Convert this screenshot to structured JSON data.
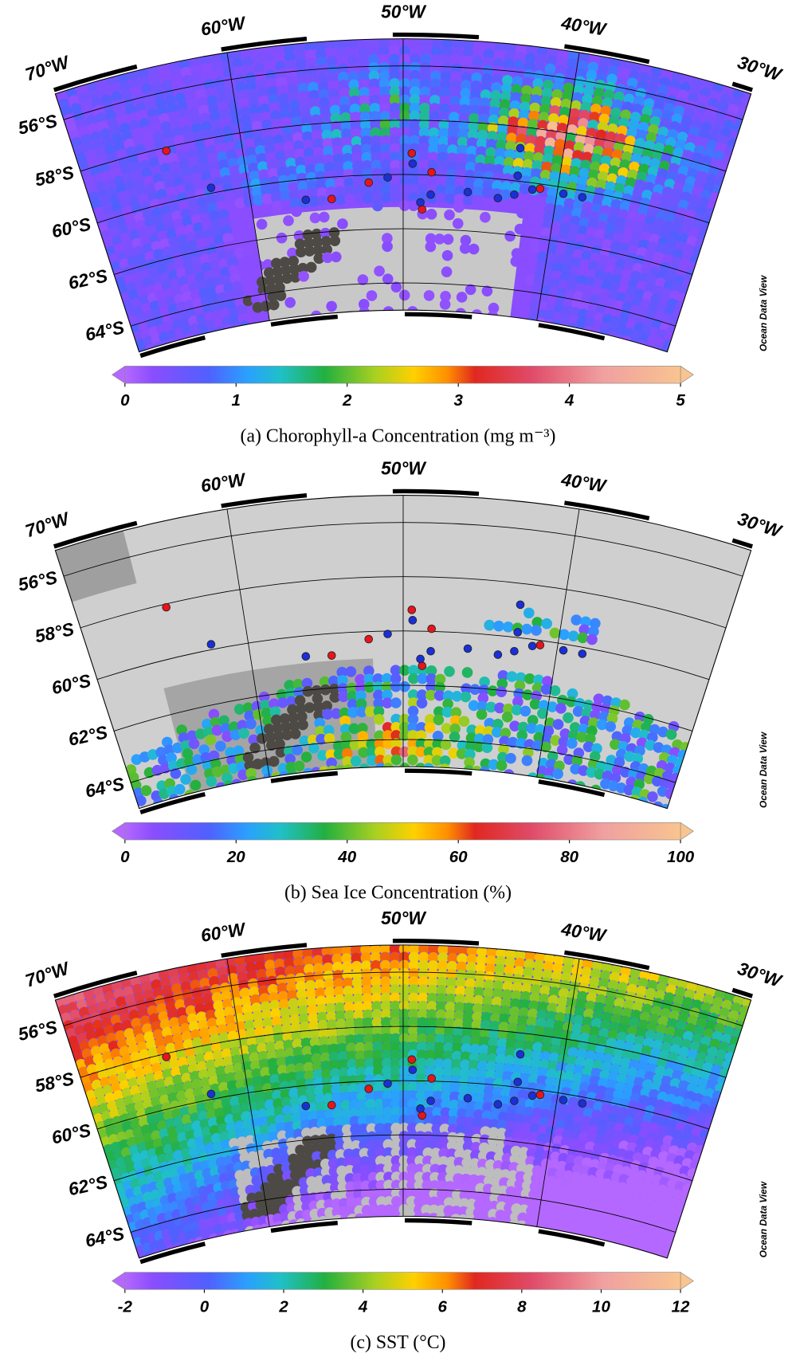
{
  "panels": [
    {
      "lon_labels": [
        "70°W",
        "60°W",
        "50°W",
        "40°W",
        "30°W"
      ],
      "lat_labels": [
        "56°S",
        "58°S",
        "60°S",
        "62°S",
        "64°S"
      ],
      "colorbar": {
        "lim": [
          0,
          5
        ],
        "ticks": [
          0,
          1,
          2,
          3,
          4,
          5
        ]
      },
      "caption": "(a) Chorophyll-a Concentration (mg m⁻³)",
      "watermark": "Ocean Data View"
    },
    {
      "lon_labels": [
        "70°W",
        "60°W",
        "50°W",
        "40°W",
        "30°W"
      ],
      "lat_labels": [
        "56°S",
        "58°S",
        "60°S",
        "62°S",
        "64°S"
      ],
      "colorbar": {
        "lim": [
          0,
          100
        ],
        "ticks": [
          0,
          20,
          40,
          60,
          80,
          100
        ]
      },
      "caption": "(b) Sea Ice Concentration (%)",
      "watermark": "Ocean Data View"
    },
    {
      "lon_labels": [
        "70°W",
        "60°W",
        "50°W",
        "40°W",
        "30°W"
      ],
      "lat_labels": [
        "56°S",
        "58°S",
        "60°S",
        "62°S",
        "64°S"
      ],
      "colorbar": {
        "lim": [
          -2,
          12
        ],
        "ticks": [
          -2,
          0,
          2,
          4,
          6,
          8,
          10,
          12
        ]
      },
      "caption": "(c) SST (°C)",
      "watermark": "Ocean Data View"
    }
  ]
}
